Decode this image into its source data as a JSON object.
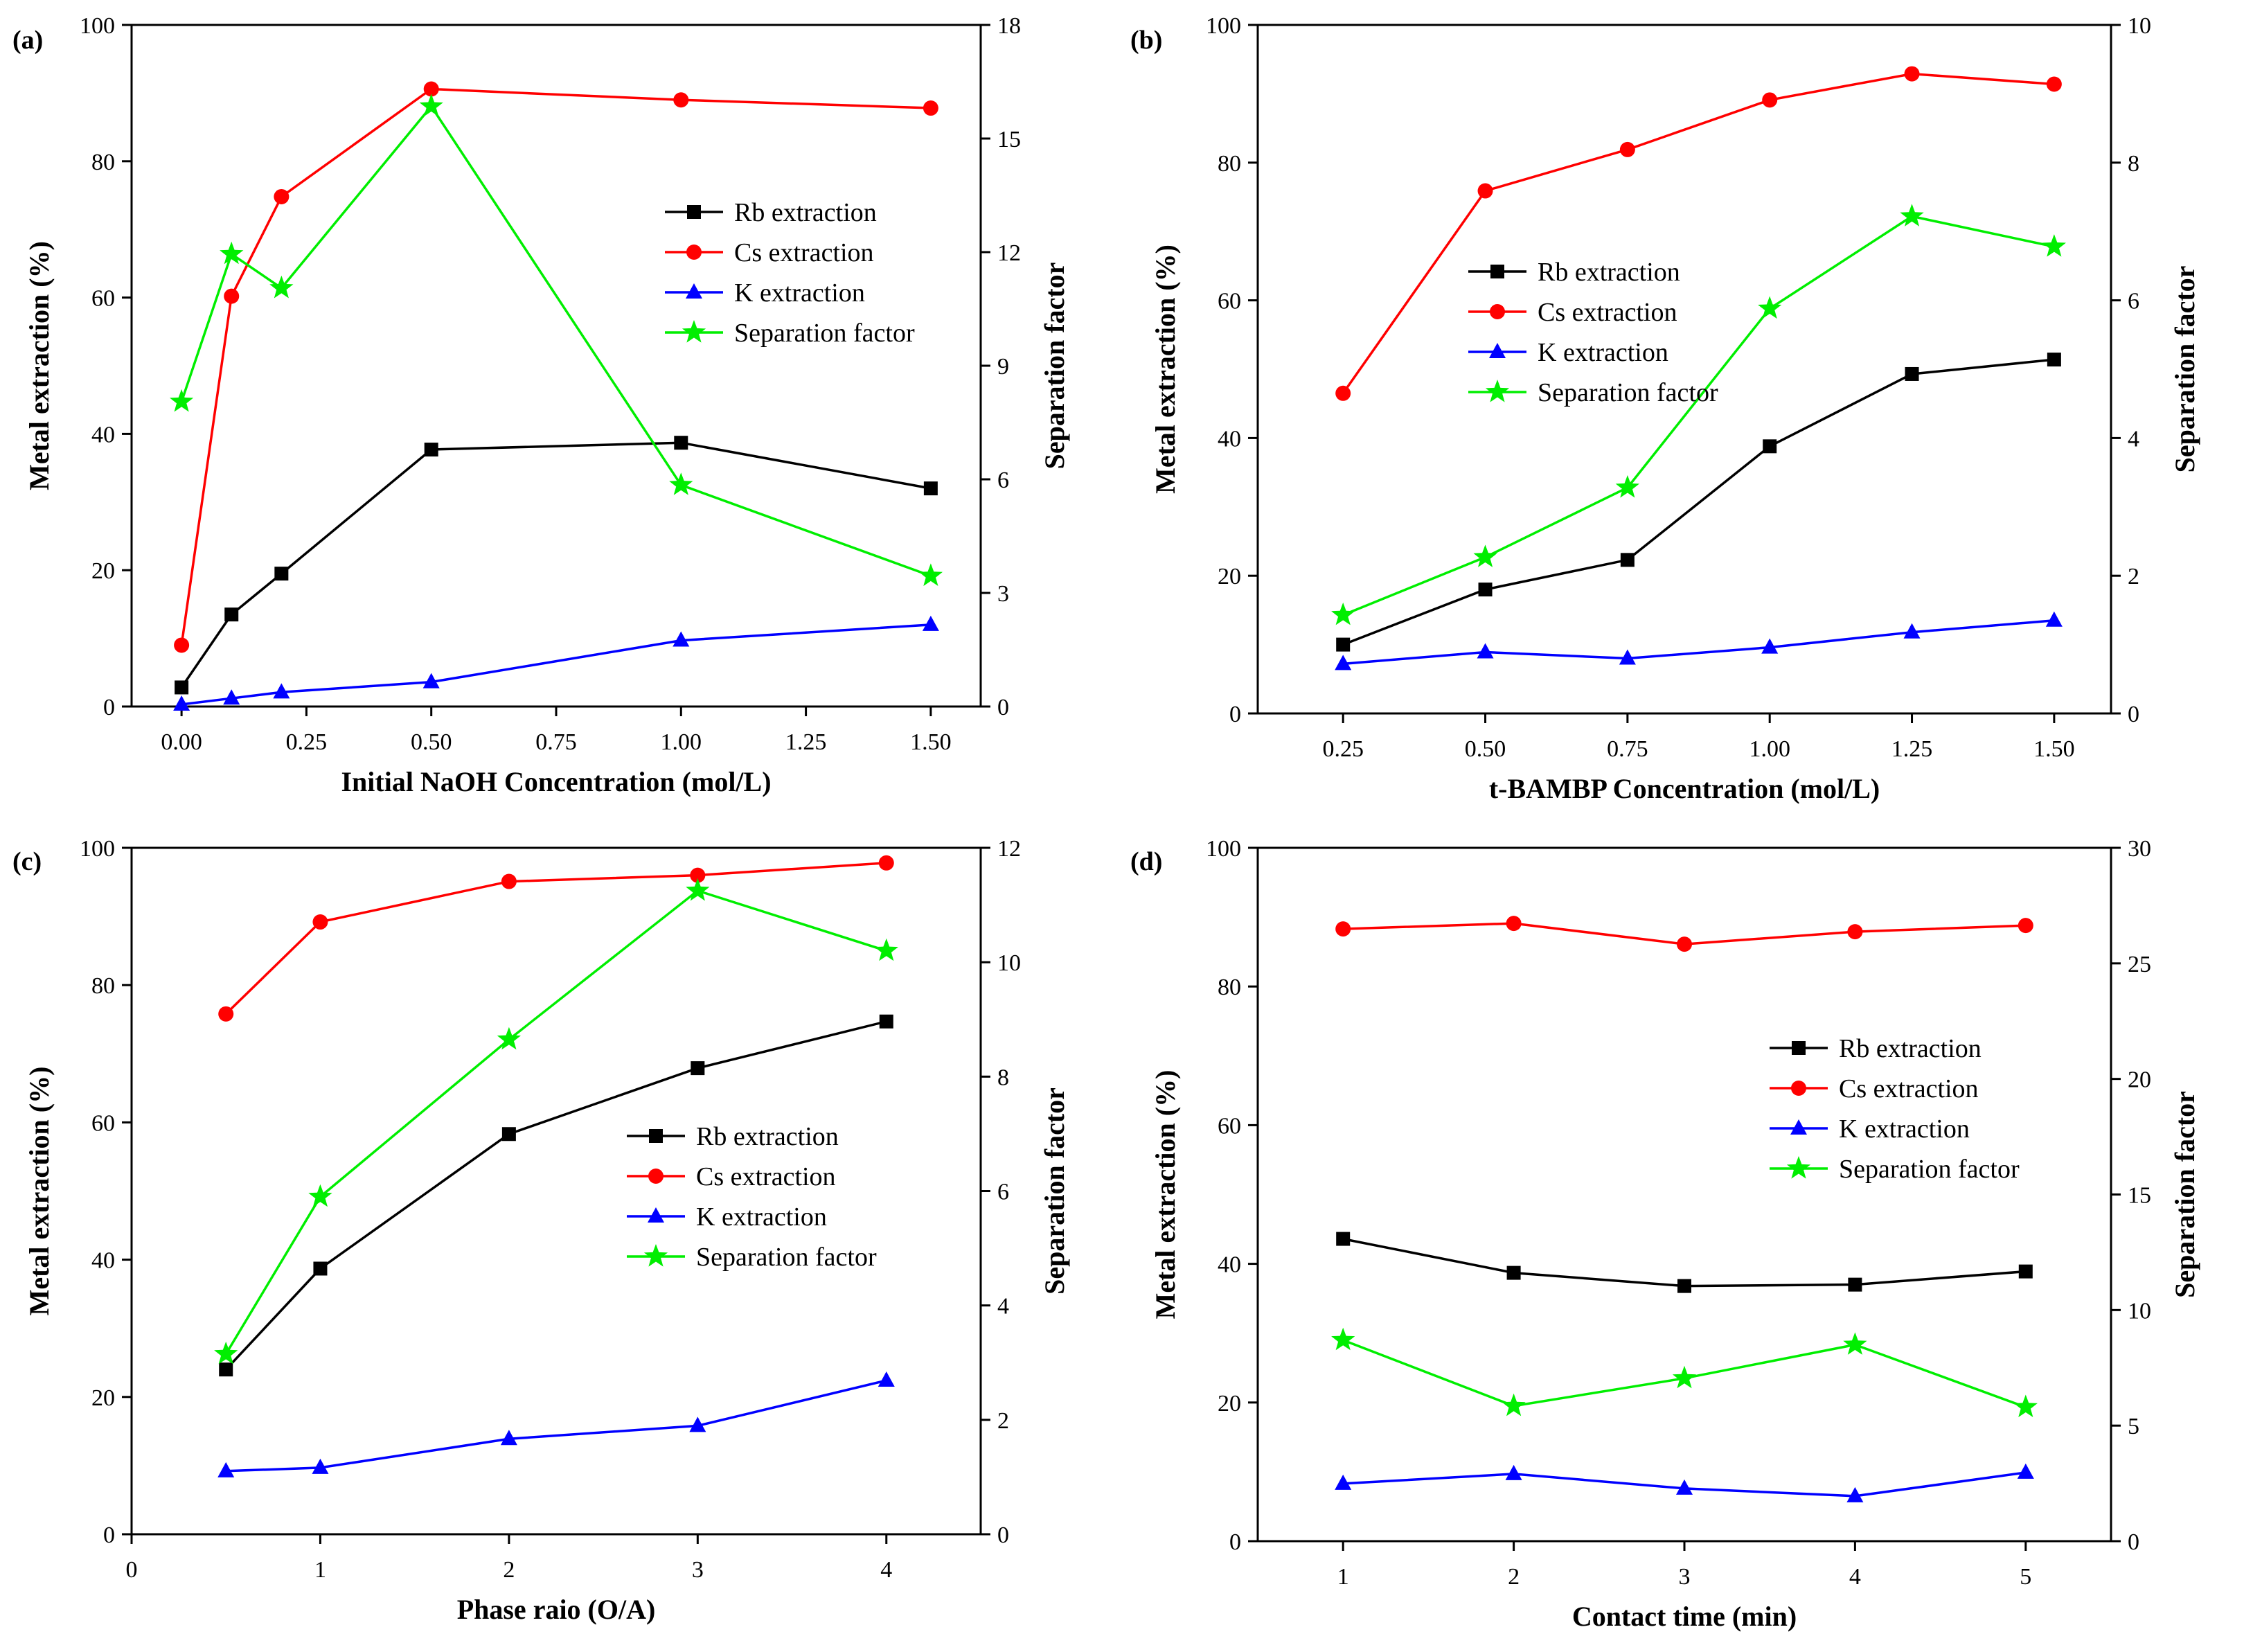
{
  "colors": {
    "rb": "#000000",
    "cs": "#ff0000",
    "k": "#0000ff",
    "sf": "#00ee00"
  },
  "chart_data": [
    {
      "type": "line",
      "panel_label": "(a)",
      "xlabel": "Initial NaOH Concentration (mol/L)",
      "ylabel": "Metal extraction (%)",
      "y2label": "Separation factor",
      "xlim": [
        -0.1,
        1.6
      ],
      "ylim": [
        0,
        100
      ],
      "y2lim": [
        0,
        18
      ],
      "xticks": [
        "0.00",
        "0.25",
        "0.50",
        "0.75",
        "1.00",
        "1.25",
        "1.50"
      ],
      "yticks": [
        "0",
        "20",
        "40",
        "60",
        "80",
        "100"
      ],
      "y2ticks": [
        "0",
        "3",
        "6",
        "9",
        "12",
        "15",
        "18"
      ],
      "legend_position": "middle-right",
      "series": [
        {
          "name": "Rb extraction",
          "marker": "square",
          "axis": "left",
          "x": [
            0,
            0.1,
            0.2,
            0.5,
            1.0,
            1.5
          ],
          "values": [
            2.8,
            13.5,
            19.5,
            37.7,
            38.7,
            32.0
          ]
        },
        {
          "name": "Cs extraction",
          "marker": "circle",
          "axis": "left",
          "x": [
            0,
            0.1,
            0.2,
            0.5,
            1.0,
            1.5
          ],
          "values": [
            9.0,
            60.2,
            74.8,
            90.6,
            89.0,
            87.8
          ]
        },
        {
          "name": "K extraction",
          "marker": "triangle",
          "axis": "left",
          "x": [
            0,
            0.1,
            0.2,
            0.5,
            1.0,
            1.5
          ],
          "values": [
            0.3,
            1.2,
            2.1,
            3.6,
            9.7,
            12.0
          ]
        },
        {
          "name": "Separation factor",
          "marker": "star",
          "axis": "right",
          "x": [
            0,
            0.1,
            0.2,
            0.5,
            1.0,
            1.5
          ],
          "values": [
            8.05,
            11.95,
            11.05,
            15.85,
            5.85,
            3.45
          ]
        }
      ]
    },
    {
      "type": "line",
      "panel_label": "(b)",
      "xlabel": "t-BAMBP Concentration (mol/L)",
      "ylabel": "Metal extraction (%)",
      "y2label": "Separation factor",
      "xlim": [
        0.1,
        1.6
      ],
      "ylim": [
        0,
        100
      ],
      "y2lim": [
        0,
        10
      ],
      "xticks": [
        "0.25",
        "0.50",
        "0.75",
        "1.00",
        "1.25",
        "1.50"
      ],
      "yticks": [
        "0",
        "20",
        "40",
        "60",
        "80",
        "100"
      ],
      "y2ticks": [
        "0",
        "2",
        "4",
        "6",
        "8",
        "10"
      ],
      "legend_position": "middle-left",
      "series": [
        {
          "name": "Rb extraction",
          "marker": "square",
          "axis": "left",
          "x": [
            0.25,
            0.5,
            0.75,
            1.0,
            1.25,
            1.5
          ],
          "values": [
            10.0,
            18.0,
            22.3,
            38.8,
            49.3,
            51.4
          ]
        },
        {
          "name": "Cs extraction",
          "marker": "circle",
          "axis": "left",
          "x": [
            0.25,
            0.5,
            0.75,
            1.0,
            1.25,
            1.5
          ],
          "values": [
            46.5,
            75.9,
            81.9,
            89.1,
            92.9,
            91.4
          ]
        },
        {
          "name": "K extraction",
          "marker": "triangle",
          "axis": "left",
          "x": [
            0.25,
            0.5,
            0.75,
            1.0,
            1.25,
            1.5
          ],
          "values": [
            7.2,
            8.9,
            8.0,
            9.6,
            11.8,
            13.5
          ]
        },
        {
          "name": "Separation factor",
          "marker": "star",
          "axis": "right",
          "x": [
            0.25,
            0.5,
            0.75,
            1.0,
            1.25,
            1.5
          ],
          "values": [
            1.43,
            2.27,
            3.28,
            5.88,
            7.22,
            6.78
          ]
        }
      ]
    },
    {
      "type": "line",
      "panel_label": "(c)",
      "xlabel": "Phase raio (O/A)",
      "ylabel": "Metal extraction (%)",
      "y2label": "Separation factor",
      "xlim": [
        0,
        4.5
      ],
      "ylim": [
        0,
        100
      ],
      "y2lim": [
        0,
        12
      ],
      "xticks": [
        "0",
        "1",
        "2",
        "3",
        "4"
      ],
      "yticks": [
        "0",
        "20",
        "40",
        "60",
        "80",
        "100"
      ],
      "y2ticks": [
        "0",
        "2",
        "4",
        "6",
        "8",
        "10",
        "12"
      ],
      "legend_position": "middle-right",
      "series": [
        {
          "name": "Rb extraction",
          "marker": "square",
          "axis": "left",
          "x": [
            0.5,
            1,
            2,
            3,
            4
          ],
          "values": [
            24.0,
            38.7,
            58.3,
            67.9,
            74.7
          ]
        },
        {
          "name": "Cs extraction",
          "marker": "circle",
          "axis": "left",
          "x": [
            0.5,
            1,
            2,
            3,
            4
          ],
          "values": [
            75.8,
            89.2,
            95.1,
            96.0,
            97.8
          ]
        },
        {
          "name": "K extraction",
          "marker": "triangle",
          "axis": "left",
          "x": [
            0.5,
            1,
            2,
            3,
            4
          ],
          "values": [
            9.2,
            9.7,
            13.9,
            15.8,
            22.4
          ]
        },
        {
          "name": "Separation factor",
          "marker": "star",
          "axis": "right",
          "x": [
            0.5,
            1,
            2,
            3,
            4
          ],
          "values": [
            3.15,
            5.9,
            8.65,
            11.25,
            10.2
          ]
        }
      ]
    },
    {
      "type": "line",
      "panel_label": "(d)",
      "xlabel": "Contact time (min)",
      "ylabel": "Metal extraction (%)",
      "y2label": "Separation factor",
      "xlim": [
        0.5,
        5.5
      ],
      "ylim": [
        0,
        100
      ],
      "y2lim": [
        0,
        30
      ],
      "xticks": [
        "1",
        "2",
        "3",
        "4",
        "5"
      ],
      "yticks": [
        "0",
        "20",
        "40",
        "60",
        "80",
        "100"
      ],
      "y2ticks": [
        "0",
        "5",
        "10",
        "15",
        "20",
        "25",
        "30"
      ],
      "legend_position": "middle-right",
      "series": [
        {
          "name": "Rb extraction",
          "marker": "square",
          "axis": "left",
          "x": [
            1,
            2,
            3,
            4,
            5
          ],
          "values": [
            43.6,
            38.7,
            36.8,
            37.0,
            38.9
          ]
        },
        {
          "name": "Cs extraction",
          "marker": "circle",
          "axis": "left",
          "x": [
            1,
            2,
            3,
            4,
            5
          ],
          "values": [
            88.3,
            89.1,
            86.1,
            87.9,
            88.8
          ]
        },
        {
          "name": "K extraction",
          "marker": "triangle",
          "axis": "left",
          "x": [
            1,
            2,
            3,
            4,
            5
          ],
          "values": [
            8.3,
            9.7,
            7.6,
            6.5,
            9.9
          ]
        },
        {
          "name": "Separation factor",
          "marker": "star",
          "axis": "right",
          "x": [
            1,
            2,
            3,
            4,
            5
          ],
          "values": [
            8.7,
            5.85,
            7.05,
            8.5,
            5.8
          ]
        }
      ]
    }
  ]
}
